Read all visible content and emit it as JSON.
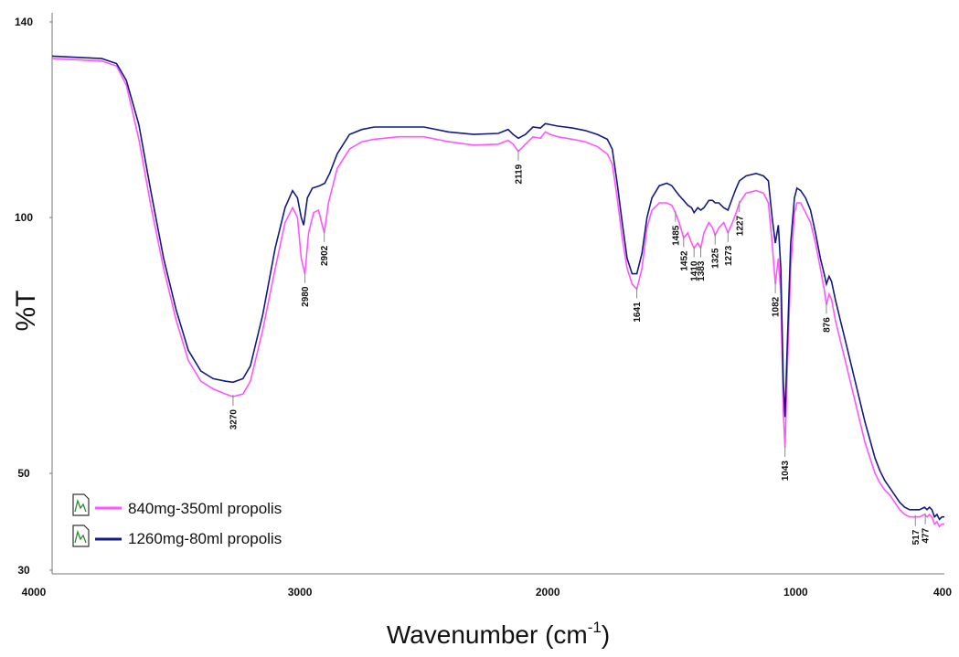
{
  "chart_data": {
    "type": "line",
    "xlabel_main": "Wavenumber (cm",
    "xlabel_sup": "-1",
    "xlabel_end": ")",
    "ylabel": "%T",
    "xlim": [
      4000,
      400
    ],
    "ylim": [
      30,
      140
    ],
    "x_ticks": [
      4000,
      3000,
      2000,
      1000,
      400
    ],
    "y_ticks": [
      140,
      100,
      50,
      30
    ],
    "x_reversed": true,
    "grid": false,
    "legend_position": "bottom-left",
    "series": [
      {
        "name": "840mg-350ml propolis",
        "color": "#ff55ff",
        "points": [
          [
            4000,
            132.5
          ],
          [
            3800,
            132
          ],
          [
            3740,
            131
          ],
          [
            3700,
            127
          ],
          [
            3650,
            116
          ],
          [
            3600,
            102
          ],
          [
            3550,
            90
          ],
          [
            3500,
            80
          ],
          [
            3450,
            72
          ],
          [
            3400,
            68
          ],
          [
            3350,
            66.5
          ],
          [
            3300,
            65.5
          ],
          [
            3270,
            65
          ],
          [
            3230,
            65.5
          ],
          [
            3200,
            68
          ],
          [
            3150,
            78
          ],
          [
            3100,
            90
          ],
          [
            3060,
            99
          ],
          [
            3030,
            102
          ],
          [
            3010,
            100
          ],
          [
            2995,
            92
          ],
          [
            2980,
            89
          ],
          [
            2965,
            97
          ],
          [
            2945,
            101
          ],
          [
            2925,
            101.5
          ],
          [
            2910,
            98.5
          ],
          [
            2902,
            97
          ],
          [
            2885,
            103
          ],
          [
            2850,
            110
          ],
          [
            2800,
            114
          ],
          [
            2750,
            115.5
          ],
          [
            2700,
            116
          ],
          [
            2600,
            116.5
          ],
          [
            2500,
            116.5
          ],
          [
            2400,
            115.5
          ],
          [
            2300,
            114.8
          ],
          [
            2200,
            115
          ],
          [
            2160,
            115.8
          ],
          [
            2140,
            115
          ],
          [
            2119,
            113.5
          ],
          [
            2090,
            115
          ],
          [
            2060,
            116.5
          ],
          [
            2030,
            116.2
          ],
          [
            2010,
            117.5
          ],
          [
            1990,
            117
          ],
          [
            1960,
            116.5
          ],
          [
            1900,
            116
          ],
          [
            1850,
            115.5
          ],
          [
            1800,
            114.5
          ],
          [
            1760,
            113
          ],
          [
            1740,
            111
          ],
          [
            1720,
            104
          ],
          [
            1700,
            96
          ],
          [
            1680,
            90
          ],
          [
            1660,
            87
          ],
          [
            1641,
            86
          ],
          [
            1620,
            90
          ],
          [
            1600,
            98
          ],
          [
            1580,
            101.5
          ],
          [
            1550,
            103
          ],
          [
            1520,
            103
          ],
          [
            1500,
            102.5
          ],
          [
            1485,
            101
          ],
          [
            1470,
            99
          ],
          [
            1452,
            96
          ],
          [
            1435,
            97
          ],
          [
            1420,
            95
          ],
          [
            1410,
            94
          ],
          [
            1395,
            95
          ],
          [
            1383,
            94
          ],
          [
            1370,
            97
          ],
          [
            1350,
            99
          ],
          [
            1335,
            98
          ],
          [
            1325,
            96.5
          ],
          [
            1310,
            98
          ],
          [
            1290,
            99
          ],
          [
            1273,
            97
          ],
          [
            1255,
            99
          ],
          [
            1240,
            101
          ],
          [
            1227,
            103
          ],
          [
            1200,
            105
          ],
          [
            1160,
            105.5
          ],
          [
            1130,
            105
          ],
          [
            1110,
            103
          ],
          [
            1095,
            95
          ],
          [
            1082,
            87
          ],
          [
            1070,
            92
          ],
          [
            1060,
            85
          ],
          [
            1050,
            62
          ],
          [
            1043,
            55
          ],
          [
            1035,
            68
          ],
          [
            1020,
            90
          ],
          [
            1005,
            101
          ],
          [
            995,
            103
          ],
          [
            980,
            103
          ],
          [
            960,
            101
          ],
          [
            940,
            99
          ],
          [
            920,
            95
          ],
          [
            900,
            90
          ],
          [
            885,
            86
          ],
          [
            876,
            83
          ],
          [
            865,
            85
          ],
          [
            855,
            84
          ],
          [
            840,
            80
          ],
          [
            820,
            76
          ],
          [
            800,
            72
          ],
          [
            780,
            68
          ],
          [
            760,
            64
          ],
          [
            740,
            60
          ],
          [
            720,
            56
          ],
          [
            700,
            53
          ],
          [
            680,
            50
          ],
          [
            660,
            48
          ],
          [
            640,
            46.5
          ],
          [
            620,
            45.5
          ],
          [
            600,
            44
          ],
          [
            580,
            42.5
          ],
          [
            560,
            41.5
          ],
          [
            540,
            41
          ],
          [
            520,
            41
          ],
          [
            500,
            41
          ],
          [
            480,
            41.5
          ],
          [
            470,
            41
          ],
          [
            460,
            41.5
          ],
          [
            450,
            41
          ],
          [
            440,
            39.5
          ],
          [
            430,
            40
          ],
          [
            420,
            39
          ],
          [
            410,
            39.5
          ],
          [
            400,
            39.5
          ]
        ]
      },
      {
        "name": "1260mg-80ml propolis",
        "color": "#141b80",
        "points": [
          [
            4000,
            133
          ],
          [
            3800,
            132.5
          ],
          [
            3740,
            131.5
          ],
          [
            3700,
            128
          ],
          [
            3650,
            119
          ],
          [
            3600,
            105
          ],
          [
            3550,
            92
          ],
          [
            3500,
            82
          ],
          [
            3450,
            74
          ],
          [
            3400,
            70
          ],
          [
            3350,
            68.5
          ],
          [
            3300,
            68
          ],
          [
            3270,
            67.8
          ],
          [
            3230,
            68.5
          ],
          [
            3200,
            71
          ],
          [
            3150,
            81
          ],
          [
            3100,
            94
          ],
          [
            3060,
            102
          ],
          [
            3030,
            105.5
          ],
          [
            3010,
            104
          ],
          [
            2995,
            100
          ],
          [
            2985,
            98.5
          ],
          [
            2970,
            104
          ],
          [
            2950,
            106
          ],
          [
            2920,
            106.5
          ],
          [
            2900,
            107
          ],
          [
            2880,
            109
          ],
          [
            2850,
            113
          ],
          [
            2800,
            117
          ],
          [
            2750,
            118
          ],
          [
            2700,
            118.5
          ],
          [
            2600,
            118.5
          ],
          [
            2500,
            118.5
          ],
          [
            2400,
            117.5
          ],
          [
            2300,
            117
          ],
          [
            2200,
            117.2
          ],
          [
            2160,
            118
          ],
          [
            2140,
            117
          ],
          [
            2119,
            116.2
          ],
          [
            2090,
            117
          ],
          [
            2060,
            118.5
          ],
          [
            2030,
            118.3
          ],
          [
            2010,
            119.2
          ],
          [
            1990,
            119
          ],
          [
            1960,
            118.7
          ],
          [
            1900,
            118.3
          ],
          [
            1850,
            117.8
          ],
          [
            1800,
            117
          ],
          [
            1760,
            116
          ],
          [
            1740,
            114
          ],
          [
            1720,
            107
          ],
          [
            1700,
            99
          ],
          [
            1680,
            92
          ],
          [
            1660,
            89
          ],
          [
            1641,
            89
          ],
          [
            1620,
            93
          ],
          [
            1600,
            100
          ],
          [
            1580,
            104
          ],
          [
            1550,
            106.5
          ],
          [
            1520,
            107
          ],
          [
            1500,
            106.5
          ],
          [
            1485,
            105.5
          ],
          [
            1470,
            104.5
          ],
          [
            1452,
            103.5
          ],
          [
            1435,
            102.5
          ],
          [
            1420,
            102
          ],
          [
            1410,
            101
          ],
          [
            1395,
            102
          ],
          [
            1383,
            101.5
          ],
          [
            1370,
            102
          ],
          [
            1350,
            103.5
          ],
          [
            1335,
            103.5
          ],
          [
            1325,
            103
          ],
          [
            1310,
            103
          ],
          [
            1290,
            102
          ],
          [
            1273,
            101.5
          ],
          [
            1255,
            104
          ],
          [
            1240,
            106
          ],
          [
            1227,
            107.5
          ],
          [
            1200,
            108.5
          ],
          [
            1160,
            109
          ],
          [
            1130,
            108.5
          ],
          [
            1110,
            107.5
          ],
          [
            1095,
            100
          ],
          [
            1082,
            95
          ],
          [
            1070,
            98.5
          ],
          [
            1060,
            90
          ],
          [
            1050,
            68
          ],
          [
            1043,
            61
          ],
          [
            1035,
            73
          ],
          [
            1020,
            95
          ],
          [
            1005,
            104
          ],
          [
            995,
            106
          ],
          [
            980,
            105.5
          ],
          [
            960,
            104
          ],
          [
            940,
            101.5
          ],
          [
            920,
            97
          ],
          [
            900,
            92
          ],
          [
            885,
            89
          ],
          [
            876,
            87
          ],
          [
            865,
            88.5
          ],
          [
            855,
            87.5
          ],
          [
            840,
            84
          ],
          [
            820,
            80
          ],
          [
            800,
            76
          ],
          [
            780,
            72
          ],
          [
            760,
            68
          ],
          [
            740,
            64
          ],
          [
            720,
            60
          ],
          [
            700,
            56.5
          ],
          [
            680,
            53
          ],
          [
            660,
            50.5
          ],
          [
            640,
            48.5
          ],
          [
            620,
            47
          ],
          [
            600,
            45.5
          ],
          [
            580,
            44
          ],
          [
            560,
            43
          ],
          [
            540,
            42.5
          ],
          [
            520,
            42.5
          ],
          [
            500,
            42.5
          ],
          [
            480,
            43
          ],
          [
            470,
            42.5
          ],
          [
            460,
            43
          ],
          [
            450,
            42.5
          ],
          [
            440,
            41
          ],
          [
            430,
            41.5
          ],
          [
            420,
            40.5
          ],
          [
            410,
            41
          ],
          [
            400,
            41
          ]
        ]
      }
    ],
    "peak_labels": [
      {
        "text": "3270",
        "x": 3270,
        "series": 0
      },
      {
        "text": "2980",
        "x": 2980,
        "series": 0
      },
      {
        "text": "2902",
        "x": 2902,
        "series": 0
      },
      {
        "text": "2119",
        "x": 2119,
        "series": 0
      },
      {
        "text": "1641",
        "x": 1641,
        "series": 0
      },
      {
        "text": "1485",
        "x": 1485,
        "series": 0
      },
      {
        "text": "1452",
        "x": 1452,
        "series": 0
      },
      {
        "text": "1410",
        "x": 1410,
        "series": 0
      },
      {
        "text": "1383",
        "x": 1383,
        "series": 0
      },
      {
        "text": "1325",
        "x": 1325,
        "series": 0
      },
      {
        "text": "1273",
        "x": 1273,
        "series": 0
      },
      {
        "text": "1227",
        "x": 1227,
        "series": 0
      },
      {
        "text": "1082",
        "x": 1082,
        "series": 0
      },
      {
        "text": "1043",
        "x": 1043,
        "series": 0
      },
      {
        "text": "876",
        "x": 876,
        "series": 0
      },
      {
        "text": "517",
        "x": 517,
        "series": 0
      },
      {
        "text": "477",
        "x": 477,
        "series": 0
      }
    ]
  }
}
